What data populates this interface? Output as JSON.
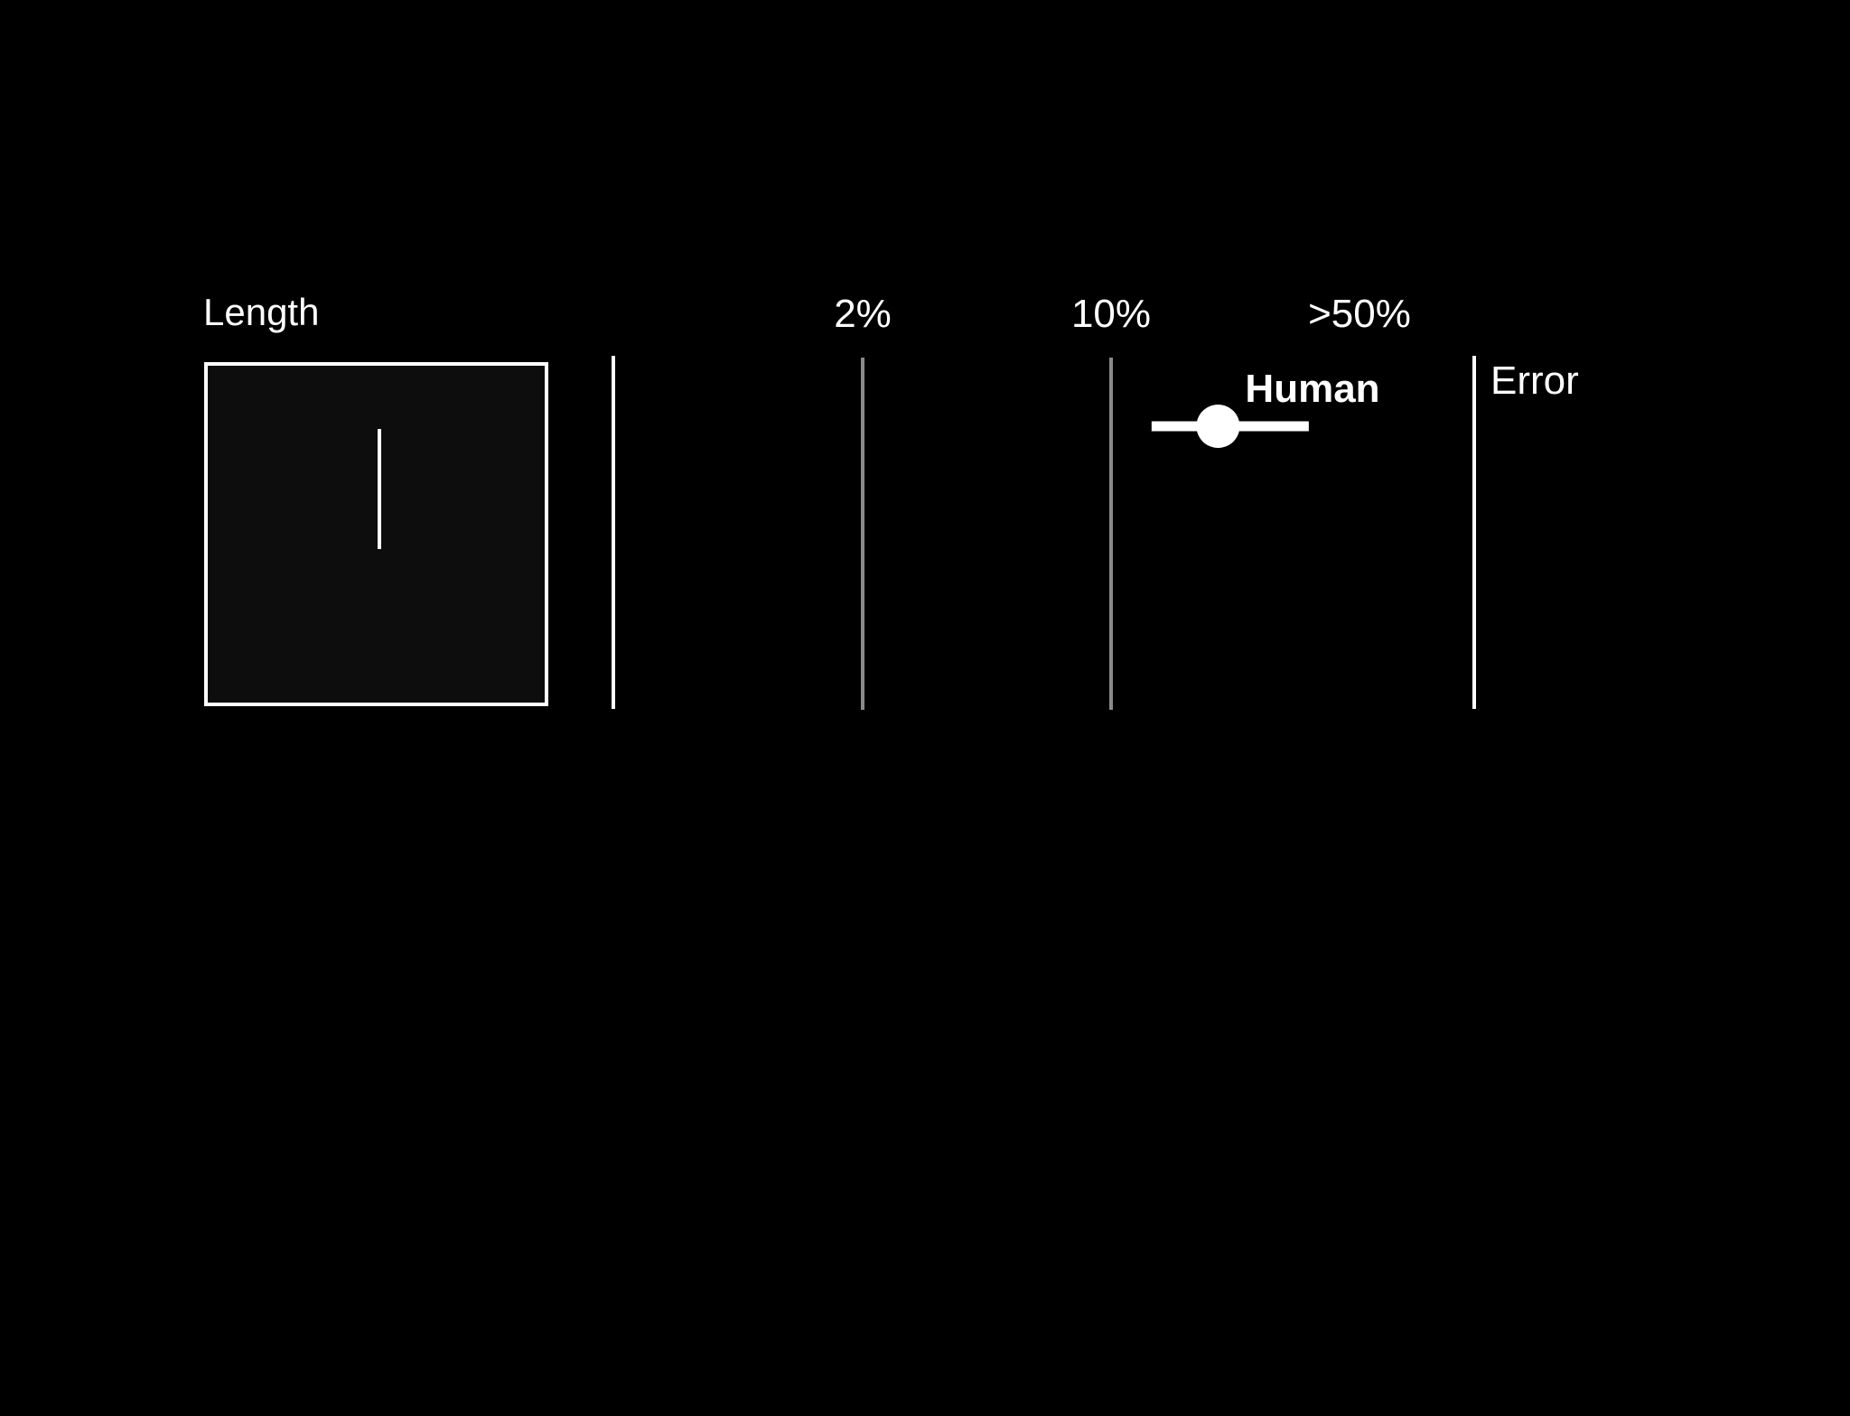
{
  "chart_data": {
    "type": "scatter",
    "panel_label": "Length",
    "x_scale": "log",
    "error_axis_label": "Error",
    "ticks": [
      {
        "value": 2,
        "label": "2%"
      },
      {
        "value": 10,
        "label": "10%"
      },
      {
        "value": 50,
        "label": ">50%"
      }
    ],
    "points": [
      {
        "name": "Human",
        "x": 20,
        "xerr_low": 13,
        "xerr_high": 36
      }
    ],
    "colors": {
      "background": "#000000",
      "foreground": "#ffffff",
      "gridline": "#8a8a8a",
      "stimulus_fill": "#0d0d0d"
    }
  }
}
